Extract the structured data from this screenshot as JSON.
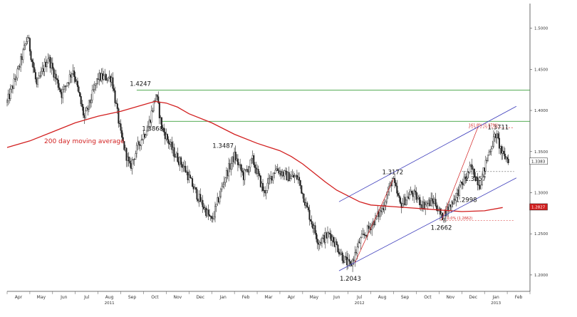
{
  "chart_data": {
    "type": "candlestick",
    "instrument_note": "",
    "y_axis": {
      "position": "right",
      "min": 1.18,
      "max": 1.53,
      "ticks": [
        "1.5000",
        "1.4500",
        "1.4000",
        "1.3500",
        "1.3000",
        "1.2500",
        "1.2000"
      ],
      "tick_values": [
        1.5,
        1.45,
        1.4,
        1.35,
        1.3,
        1.25,
        1.2
      ]
    },
    "x_axis": {
      "months": [
        "Apr",
        "May",
        "Jun",
        "Jul",
        "Aug",
        "Sep",
        "Oct",
        "Nov",
        "Dec",
        "Jan",
        "Feb",
        "Mar",
        "Apr",
        "May",
        "Jun",
        "Jul",
        "Aug",
        "Sep",
        "Oct",
        "Nov",
        "Dec",
        "Jan",
        "Feb"
      ],
      "years": [
        {
          "label": "2011",
          "month_index": 4
        },
        {
          "label": "2012",
          "month_index": 15
        },
        {
          "label": "2013",
          "month_index": 21
        }
      ]
    },
    "series": [
      {
        "name": "200 day moving average",
        "color": "#d21f1f",
        "points": [
          [
            0,
            1.355
          ],
          [
            1,
            1.363
          ],
          [
            2,
            1.374
          ],
          [
            3,
            1.385
          ],
          [
            4,
            1.393
          ],
          [
            5,
            1.399
          ],
          [
            6,
            1.407
          ],
          [
            6.5,
            1.411
          ],
          [
            7,
            1.409
          ],
          [
            7.5,
            1.404
          ],
          [
            8,
            1.396
          ],
          [
            9,
            1.385
          ],
          [
            10,
            1.371
          ],
          [
            11,
            1.36
          ],
          [
            12,
            1.351
          ],
          [
            12.5,
            1.344
          ],
          [
            13,
            1.335
          ],
          [
            13.5,
            1.324
          ],
          [
            14,
            1.313
          ],
          [
            14.5,
            1.303
          ],
          [
            15,
            1.296
          ],
          [
            15.5,
            1.289
          ],
          [
            16,
            1.285
          ],
          [
            17,
            1.283
          ],
          [
            18,
            1.281
          ],
          [
            19,
            1.279
          ],
          [
            20,
            1.277
          ],
          [
            21,
            1.278
          ],
          [
            21.8,
            1.282
          ]
        ]
      }
    ],
    "candle_path": [
      [
        0,
        1.41
      ],
      [
        0.5,
        1.45
      ],
      [
        0.9,
        1.49
      ],
      [
        1.3,
        1.43
      ],
      [
        1.8,
        1.465
      ],
      [
        2.4,
        1.42
      ],
      [
        2.9,
        1.45
      ],
      [
        3.4,
        1.39
      ],
      [
        4,
        1.44
      ],
      [
        4.6,
        1.44
      ],
      [
        5,
        1.37
      ],
      [
        5.4,
        1.33
      ],
      [
        5.8,
        1.36
      ],
      [
        6.2,
        1.38
      ],
      [
        6.55,
        1.42
      ],
      [
        6.8,
        1.38
      ],
      [
        7.3,
        1.35
      ],
      [
        7.8,
        1.33
      ],
      [
        8.3,
        1.3
      ],
      [
        9,
        1.265
      ],
      [
        9.6,
        1.32
      ],
      [
        10,
        1.345
      ],
      [
        10.4,
        1.32
      ],
      [
        10.8,
        1.34
      ],
      [
        11.3,
        1.3
      ],
      [
        11.8,
        1.33
      ],
      [
        12.3,
        1.32
      ],
      [
        12.8,
        1.318
      ],
      [
        13.2,
        1.28
      ],
      [
        13.7,
        1.24
      ],
      [
        14.2,
        1.25
      ],
      [
        14.8,
        1.22
      ],
      [
        15.1,
        1.21
      ],
      [
        15.5,
        1.24
      ],
      [
        16,
        1.26
      ],
      [
        16.5,
        1.28
      ],
      [
        16.95,
        1.317
      ],
      [
        17.3,
        1.285
      ],
      [
        17.8,
        1.3
      ],
      [
        18.3,
        1.285
      ],
      [
        18.8,
        1.29
      ],
      [
        19.1,
        1.27
      ],
      [
        19.5,
        1.285
      ],
      [
        20,
        1.31
      ],
      [
        20.4,
        1.33
      ],
      [
        20.8,
        1.31
      ],
      [
        21.2,
        1.35
      ],
      [
        21.5,
        1.371
      ],
      [
        21.8,
        1.345
      ],
      [
        22.1,
        1.34
      ]
    ],
    "horizontal_levels": [
      {
        "value": 1.4247,
        "color": "#3ea03e",
        "start_month": 5.7
      },
      {
        "value": 1.3868,
        "color": "#3ea03e",
        "start_month": 6.8
      }
    ],
    "trend_channel": {
      "color": "#3b3bbb",
      "upper": [
        [
          14.6,
          1.289
        ],
        [
          22.4,
          1.405
        ]
      ],
      "lower": [
        [
          14.6,
          1.205
        ],
        [
          22.4,
          1.318
        ]
      ]
    },
    "red_trendlines": [
      [
        [
          15.3,
          1.215
        ],
        [
          17.0,
          1.317
        ]
      ],
      [
        [
          19.1,
          1.266
        ],
        [
          20.7,
          1.379
        ]
      ]
    ],
    "dashed_lines": [
      {
        "value": 1.3791,
        "color": "#d21f1f",
        "start_month": 20.3,
        "end_month": 22.3
      },
      {
        "value": 1.3257,
        "color": "#555555",
        "start_month": 20.0,
        "end_month": 22.3
      },
      {
        "value": 1.2662,
        "color": "#d21f1f",
        "start_month": 19.2,
        "end_month": 22.3
      }
    ],
    "annotations": [
      {
        "text": "1.4247",
        "month": 5.8,
        "value": 1.4247,
        "placement": "above-left"
      },
      {
        "text": "1.3868",
        "month": 6.4,
        "value": 1.3868,
        "placement": "below"
      },
      {
        "text": "1.3487",
        "month": 9.5,
        "value": 1.3487,
        "placement": "above"
      },
      {
        "text": "1.3172",
        "month": 16.9,
        "value": 1.3172,
        "placement": "above-left"
      },
      {
        "text": "1.2043",
        "month": 15.1,
        "value": 1.2043,
        "placement": "below"
      },
      {
        "text": "1.2662",
        "month": 19.1,
        "value": 1.2662,
        "placement": "below"
      },
      {
        "text": "1.2998",
        "month": 20.2,
        "value": 1.2998,
        "placement": "below"
      },
      {
        "text": "1.3257",
        "month": 20.6,
        "value": 1.3257,
        "placement": "below"
      },
      {
        "text": "1.3711",
        "month": 21.6,
        "value": 1.3711,
        "placement": "above"
      }
    ],
    "small_annotations": [
      {
        "text": "161.8% (1.3791)",
        "month": 20.3,
        "value": 1.3791
      },
      {
        "text": "0.0% (1.2662)",
        "month": 19.35,
        "value": 1.2662
      }
    ],
    "price_tags": [
      {
        "text": "1.3383",
        "value": 1.3383,
        "fill": "#ffffff",
        "text_color": "#111111"
      },
      {
        "text": "1.2827",
        "value": 1.2827,
        "fill": "#d21f1f",
        "text_color": "#ffffff"
      }
    ],
    "ma_label": "200 day moving average"
  }
}
